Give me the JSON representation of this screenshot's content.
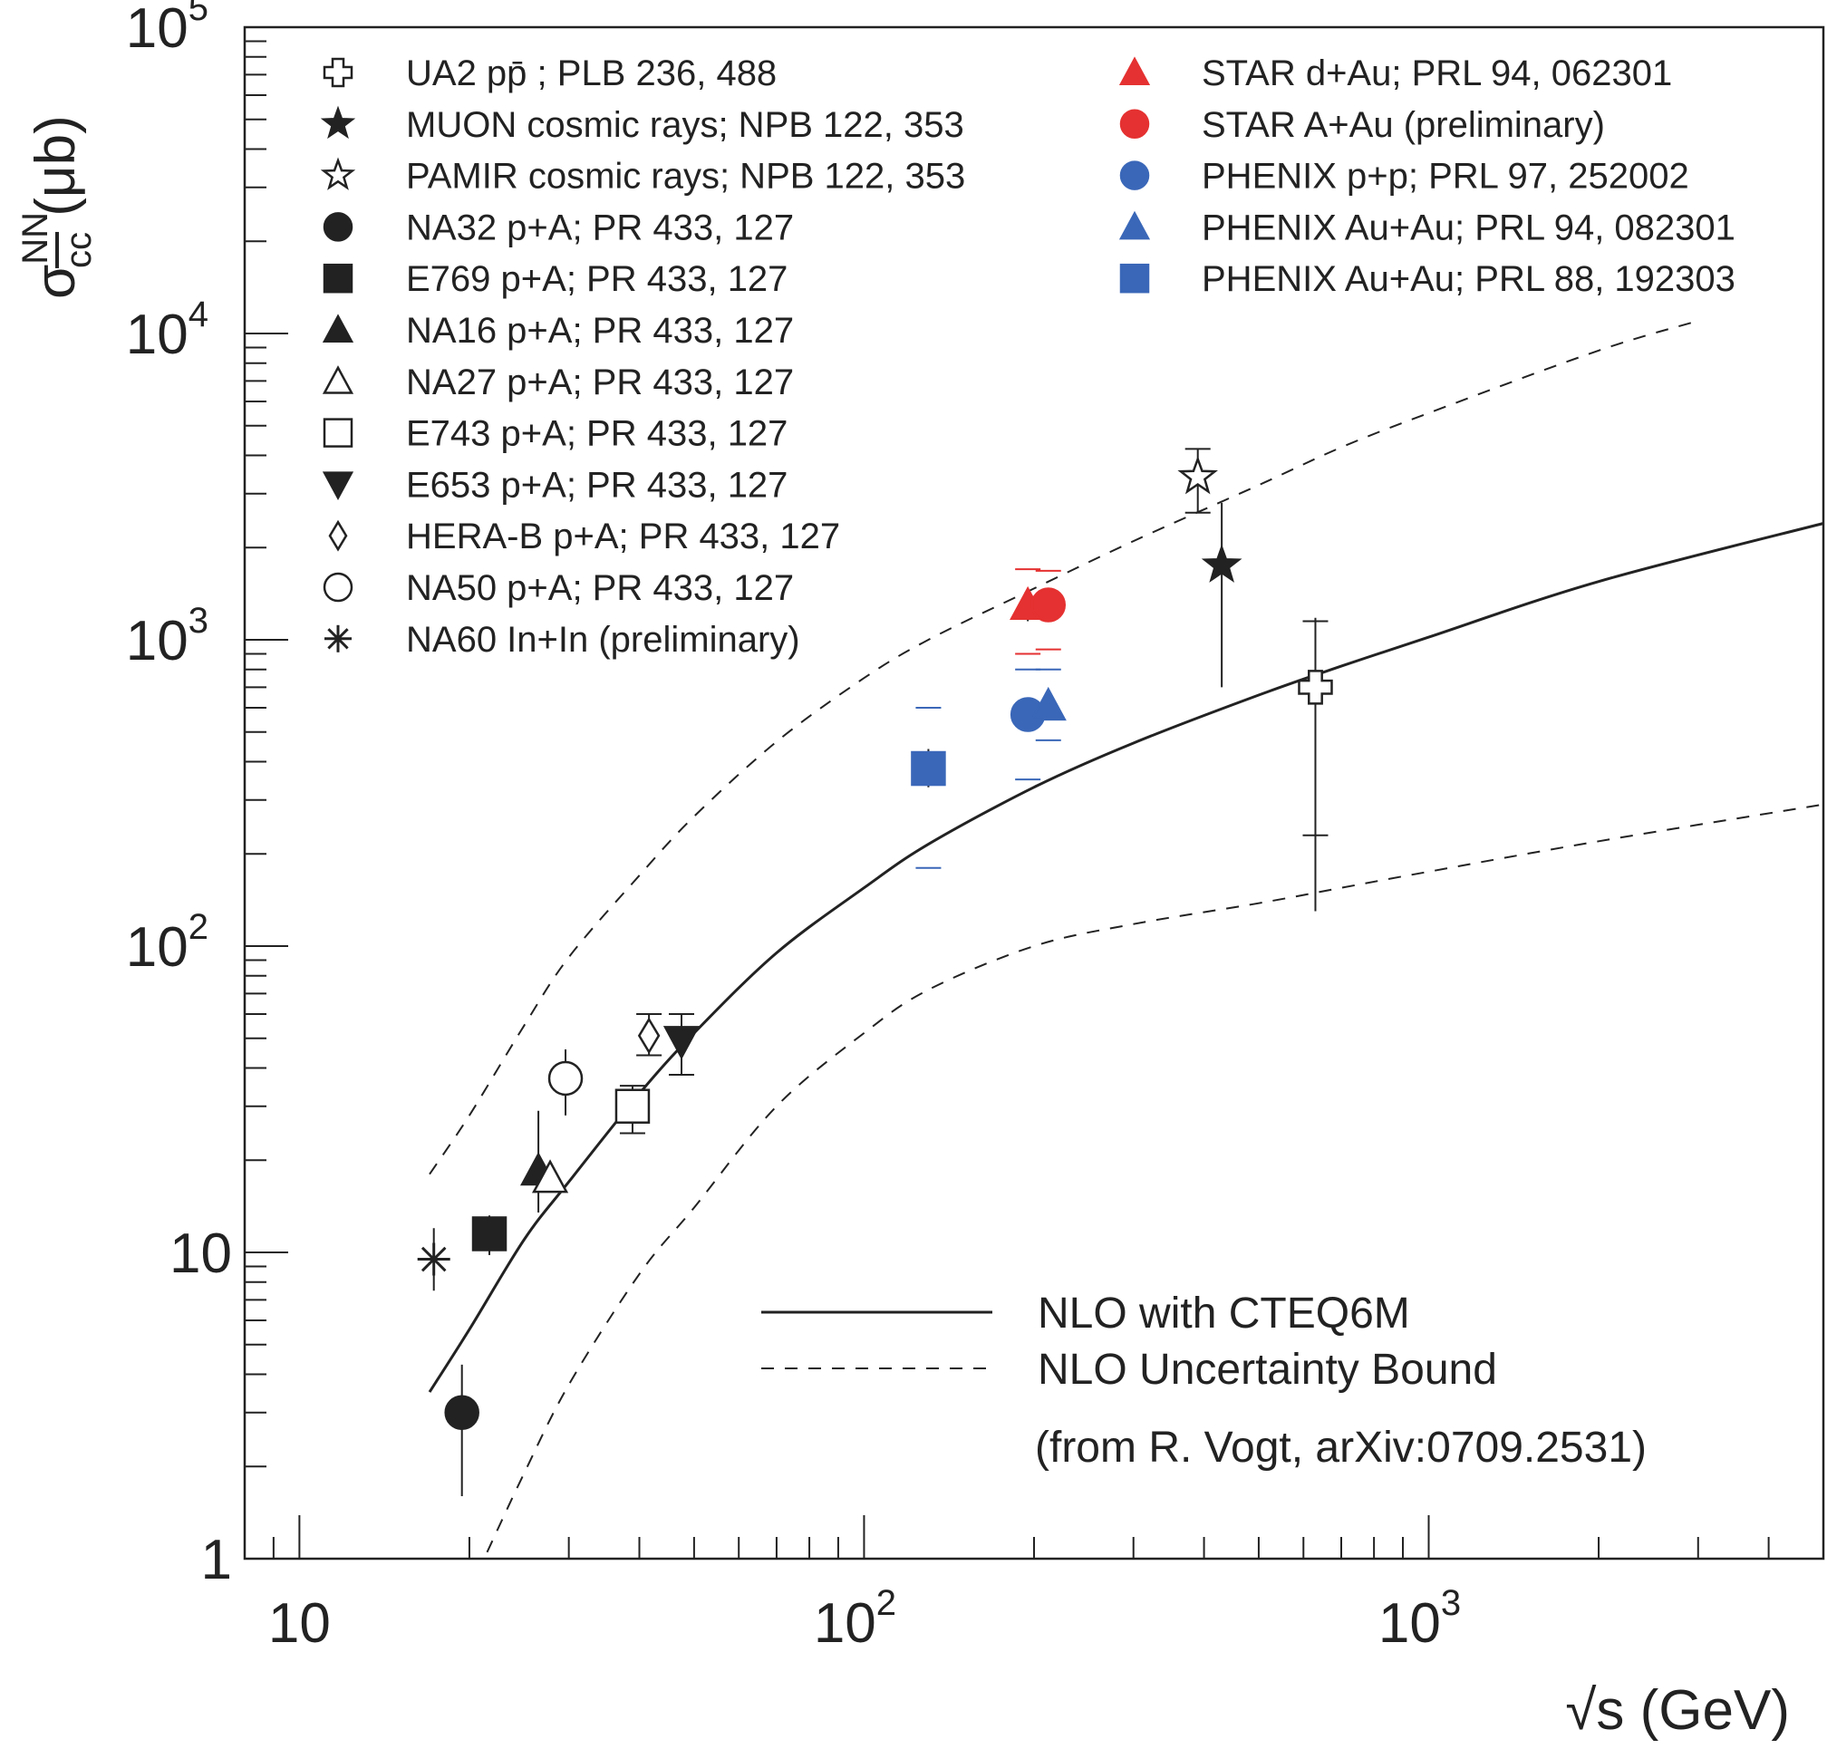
{
  "chart_data": {
    "type": "scatter",
    "title": "",
    "xlabel": "√s (GeV)",
    "ylabel_parts": {
      "sigma": "σ",
      "superscript": "NN",
      "subscript": "cc",
      "unit": " (μb)"
    },
    "x_scale": "log",
    "y_scale": "log",
    "xlim": [
      8,
      5000
    ],
    "ylim": [
      1,
      100000
    ],
    "grid": false,
    "x_ticks": [
      {
        "value": 10,
        "base": "10",
        "exp": ""
      },
      {
        "value": 100,
        "base": "10",
        "exp": "2"
      },
      {
        "value": 1000,
        "base": "10",
        "exp": "3"
      }
    ],
    "y_ticks": [
      {
        "value": 1,
        "base": "1",
        "exp": ""
      },
      {
        "value": 10,
        "base": "10",
        "exp": ""
      },
      {
        "value": 100,
        "base": "10",
        "exp": "2"
      },
      {
        "value": 1000,
        "base": "10",
        "exp": "3"
      },
      {
        "value": 10000,
        "base": "10",
        "exp": "4"
      },
      {
        "value": 100000,
        "base": "10",
        "exp": "5"
      }
    ],
    "series": [
      {
        "name": "UA2 pp̄ ; PLB 236, 488",
        "marker": "cross-open",
        "color": "#222222",
        "x": 630,
        "y": 700,
        "ylow": 130,
        "yhigh": 1180,
        "sys": [
          230,
          1150
        ]
      },
      {
        "name": "MUON cosmic rays; NPB 122, 353",
        "marker": "star-filled",
        "color": "#222222",
        "x": 430,
        "y": 1750,
        "ylow": 700,
        "yhigh": 2800
      },
      {
        "name": "PAMIR cosmic rays; NPB 122, 353",
        "marker": "star-open",
        "color": "#222222",
        "x": 390,
        "y": 3400,
        "ylow": 2600,
        "yhigh": 4200,
        "caps": true
      },
      {
        "name": "NA32 p+A; PR 433, 127",
        "marker": "circle-filled",
        "color": "#222222",
        "x": 19.4,
        "y": 3.0,
        "ylow": 1.6,
        "yhigh": 4.3
      },
      {
        "name": "E769 p+A; PR 433, 127",
        "marker": "square-filled",
        "color": "#222222",
        "x": 21.7,
        "y": 11.5,
        "ylow": 9.8,
        "yhigh": 13.2
      },
      {
        "name": "NA16 p+A; PR 433, 127",
        "marker": "triangle-filled",
        "color": "#222222",
        "x": 26.5,
        "y": 18.5,
        "ylow": 13.5,
        "yhigh": 29
      },
      {
        "name": "NA27 p+A; PR 433, 127",
        "marker": "triangle-open",
        "color": "#222222",
        "x": 27.8,
        "y": 17.5,
        "ylow": 16,
        "yhigh": 19
      },
      {
        "name": "E743 p+A; PR 433, 127",
        "marker": "square-open",
        "color": "#222222",
        "x": 38.9,
        "y": 30,
        "ylow": 24.5,
        "yhigh": 35,
        "caps": true
      },
      {
        "name": "E653 p+A; PR 433, 127",
        "marker": "triangle-down-filled",
        "color": "#222222",
        "x": 47.5,
        "y": 49,
        "ylow": 38,
        "yhigh": 60,
        "caps": true
      },
      {
        "name": "HERA-B p+A; PR 433, 127",
        "marker": "diamond-open",
        "color": "#222222",
        "x": 41.6,
        "y": 51,
        "ylow": 44,
        "yhigh": 60,
        "caps": true
      },
      {
        "name": "NA50 p+A; PR 433, 127",
        "marker": "circle-open",
        "color": "#222222",
        "x": 29.6,
        "y": 37,
        "ylow": 28,
        "yhigh": 46
      },
      {
        "name": "NA60 In+In (preliminary)",
        "marker": "asterisk",
        "color": "#222222",
        "x": 17.3,
        "y": 9.5,
        "ylow": 7.5,
        "yhigh": 12
      },
      {
        "name": "STAR d+Au; PRL 94, 062301",
        "marker": "triangle-filled",
        "color": "#e53131",
        "x": 195,
        "y": 1300,
        "ylow": 1150,
        "yhigh": 1450,
        "sys": [
          900,
          1700
        ]
      },
      {
        "name": "STAR A+Au (preliminary)",
        "marker": "circle-filled",
        "color": "#e53131",
        "x": 212,
        "y": 1300,
        "ylow": 1150,
        "yhigh": 1450,
        "sys": [
          930,
          1680
        ]
      },
      {
        "name": "PHENIX p+p; PRL 97, 252002",
        "marker": "circle-filled",
        "color": "#3a67b8",
        "x": 195,
        "y": 570,
        "ylow": 520,
        "yhigh": 620,
        "sys": [
          350,
          800
        ]
      },
      {
        "name": "PHENIX Au+Au; PRL 94, 082301",
        "marker": "triangle-filled",
        "color": "#3a67b8",
        "x": 212,
        "y": 610,
        "ylow": 560,
        "yhigh": 660,
        "sys": [
          470,
          800
        ]
      },
      {
        "name": "PHENIX Au+Au; PRL 88, 192303",
        "marker": "square-filled",
        "color": "#3a67b8",
        "x": 130,
        "y": 380,
        "ylow": 330,
        "yhigh": 440,
        "sys": [
          180,
          600
        ]
      }
    ],
    "curves": [
      {
        "name": "NLO with CTEQ6M",
        "style": "solid",
        "x": [
          17,
          20,
          25,
          30,
          40,
          50,
          70,
          100,
          130,
          200,
          300,
          500,
          700,
          1000,
          2000,
          5000
        ],
        "y": [
          3.5,
          5.6,
          11,
          17,
          33,
          52,
          95,
          155,
          215,
          330,
          460,
          660,
          820,
          1020,
          1550,
          2400
        ]
      },
      {
        "name": "NLO Uncertainty Bound",
        "style": "dashed",
        "x": [
          17,
          20,
          25,
          30,
          40,
          50,
          70,
          100,
          130,
          200,
          300,
          500,
          700,
          1000,
          2000,
          3000
        ],
        "y": [
          18,
          28,
          55,
          92,
          170,
          265,
          465,
          750,
          1000,
          1470,
          2100,
          3200,
          4250,
          5500,
          8800,
          11000
        ]
      },
      {
        "name": "NLO lower bound",
        "style": "dashed",
        "x": [
          21.5,
          25,
          30,
          40,
          50,
          70,
          100,
          130,
          200,
          300,
          500,
          700,
          1000,
          2000,
          5000
        ],
        "y": [
          1.05,
          1.9,
          3.7,
          8.5,
          14,
          30,
          52,
          72,
          100,
          118,
          138,
          155,
          175,
          220,
          290
        ]
      }
    ],
    "legend": {
      "placement": "top",
      "curve_legend_placement": "bottom-right",
      "curve_entries": [
        {
          "label": "NLO with CTEQ6M",
          "style": "solid"
        },
        {
          "label": "NLO Uncertainty Bound",
          "style": "dashed"
        }
      ]
    },
    "annotations": [
      "(from R. Vogt, arXiv:0709.2531)"
    ]
  }
}
